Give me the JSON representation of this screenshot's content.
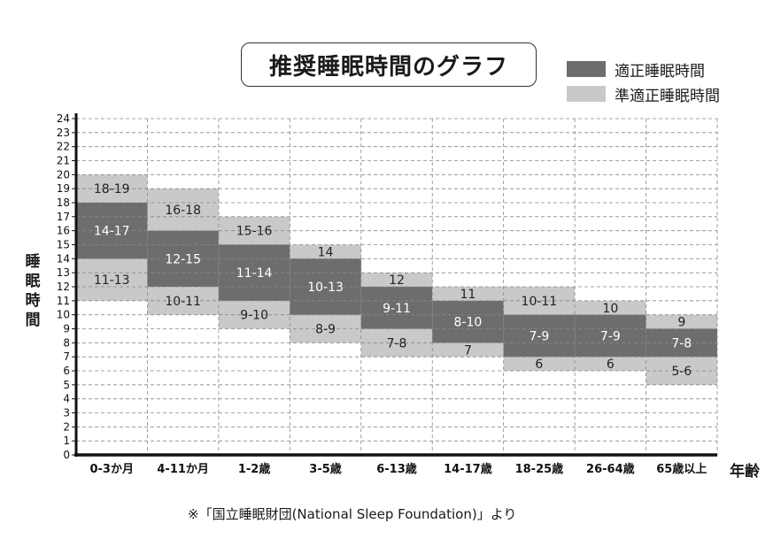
{
  "chart_data": {
    "type": "bar",
    "title": "推奨睡眠時間のグラフ",
    "ylabel": "睡眠時間",
    "xlabel": "年齢",
    "ylim": [
      0,
      24
    ],
    "yticks": [
      "0",
      "1",
      "2",
      "3",
      "4",
      "5",
      "6",
      "7",
      "8",
      "9",
      "10",
      "11",
      "12",
      "13",
      "14",
      "15",
      "16",
      "17",
      "18",
      "19",
      "20",
      "21",
      "22",
      "23",
      "24"
    ],
    "grid": true,
    "legend": {
      "placement": "top-right",
      "recommended": "適正睡眠時間",
      "acceptable": "準適正睡眠時間"
    },
    "colors": {
      "recommended": "#6d6d6d",
      "acceptable": "#c9c9c9"
    },
    "categories": [
      "0-3か月",
      "4-11か月",
      "1-2歳",
      "3-5歳",
      "6-13歳",
      "14-17歳",
      "18-25歳",
      "26-64歳",
      "65歳以上"
    ],
    "series": [
      {
        "name": "適正睡眠時間",
        "ranges": [
          [
            14,
            17
          ],
          [
            12,
            15
          ],
          [
            11,
            14
          ],
          [
            10,
            13
          ],
          [
            9,
            11
          ],
          [
            8,
            10
          ],
          [
            7,
            9
          ],
          [
            7,
            9
          ],
          [
            7,
            8
          ]
        ],
        "labels": [
          "14-17",
          "12-15",
          "11-14",
          "10-13",
          "9-11",
          "8-10",
          "7-9",
          "7-9",
          "7-8"
        ]
      },
      {
        "name": "準適正睡眠時間 (上)",
        "ranges": [
          [
            18,
            19
          ],
          [
            16,
            18
          ],
          [
            15,
            16
          ],
          [
            14,
            14
          ],
          [
            12,
            12
          ],
          [
            11,
            11
          ],
          [
            10,
            11
          ],
          [
            10,
            10
          ],
          [
            9,
            9
          ]
        ],
        "labels": [
          "18-19",
          "16-18",
          "15-16",
          "14",
          "12",
          "11",
          "10-11",
          "10",
          "9"
        ]
      },
      {
        "name": "準適正睡眠時間 (下)",
        "ranges": [
          [
            11,
            13
          ],
          [
            10,
            11
          ],
          [
            9,
            10
          ],
          [
            8,
            9
          ],
          [
            7,
            8
          ],
          [
            7,
            7
          ],
          [
            6,
            6
          ],
          [
            6,
            6
          ],
          [
            5,
            6
          ]
        ],
        "labels": [
          "11-13",
          "10-11",
          "9-10",
          "8-9",
          "7-8",
          "7",
          "6",
          "6",
          "5-6"
        ]
      }
    ]
  },
  "footnote": "※「国立睡眠財団(National Sleep Foundation)」より"
}
